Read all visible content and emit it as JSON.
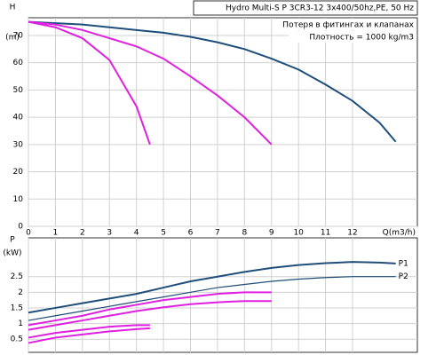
{
  "chart_data": [
    {
      "type": "line",
      "title": "Hydro Multi-S P 3CR3-12 3x400/50hz,PE, 50 Hz",
      "annotations": [
        "Потеря в фитингах и клапанах",
        "Плотность = 1000 kg/m3"
      ],
      "ylabel": [
        "H",
        "(m)"
      ],
      "xlabel": "Q(m3/h)",
      "xlim": [
        0,
        14.4
      ],
      "xticks": [
        0,
        1,
        2,
        3,
        4,
        5,
        6,
        7,
        8,
        9,
        10,
        11,
        12
      ],
      "ylim": [
        0,
        76.5
      ],
      "yticks": [
        0,
        10,
        20,
        30,
        40,
        50,
        60,
        70
      ],
      "grid": true,
      "series": [
        {
          "color": "#1f4e79",
          "x": [
            0,
            1,
            2,
            3,
            4,
            5,
            6,
            7,
            8,
            9,
            10,
            11,
            12,
            13,
            13.6
          ],
          "values": [
            75,
            74.5,
            74,
            73,
            72,
            71,
            69.5,
            67.5,
            65,
            61.5,
            57.5,
            52,
            46,
            38,
            31
          ]
        },
        {
          "color": "#e020e0",
          "x": [
            0,
            1,
            2,
            3,
            4,
            5,
            6,
            7,
            8,
            9
          ],
          "values": [
            75,
            74,
            72,
            69,
            66,
            61.5,
            55,
            48,
            40,
            30
          ]
        },
        {
          "color": "#e020e0",
          "x": [
            0,
            1,
            2,
            3,
            4,
            4.5
          ],
          "values": [
            75,
            73,
            69,
            61,
            44,
            30
          ]
        }
      ]
    },
    {
      "type": "line",
      "ylabel": [
        "P",
        "(kW)"
      ],
      "xlim": [
        0,
        14.4
      ],
      "ylim": [
        0.08,
        3.74
      ],
      "yticks": [
        0.5,
        1,
        1.5,
        2,
        2.5
      ],
      "grid": true,
      "series": [
        {
          "name": "P1",
          "color": "#1f4e79",
          "x": [
            0,
            1,
            2,
            3,
            4,
            5,
            6,
            7,
            8,
            9,
            10,
            11,
            12,
            13,
            13.6
          ],
          "values": [
            1.35,
            1.5,
            1.65,
            1.8,
            1.95,
            2.15,
            2.35,
            2.5,
            2.65,
            2.78,
            2.87,
            2.93,
            2.97,
            2.95,
            2.92
          ]
        },
        {
          "name": "P2",
          "color": "#1f4e79",
          "x": [
            0,
            1,
            2,
            3,
            4,
            5,
            6,
            7,
            8,
            9,
            10,
            11,
            12,
            13,
            13.6
          ],
          "values": [
            1.1,
            1.25,
            1.4,
            1.55,
            1.7,
            1.85,
            2.0,
            2.15,
            2.25,
            2.35,
            2.42,
            2.47,
            2.5,
            2.5,
            2.5
          ]
        },
        {
          "color": "#e020e0",
          "x": [
            0,
            1,
            2,
            3,
            4,
            5,
            6,
            7,
            8,
            9
          ],
          "values": [
            0.95,
            1.1,
            1.25,
            1.45,
            1.6,
            1.75,
            1.85,
            1.95,
            2.0,
            2.0
          ]
        },
        {
          "color": "#e020e0",
          "x": [
            0,
            1,
            2,
            3,
            4,
            5,
            6,
            7,
            8,
            9
          ],
          "values": [
            0.8,
            0.95,
            1.1,
            1.25,
            1.4,
            1.52,
            1.62,
            1.68,
            1.72,
            1.72
          ]
        },
        {
          "color": "#e020e0",
          "x": [
            0,
            1,
            2,
            3,
            4,
            4.5
          ],
          "values": [
            0.55,
            0.7,
            0.8,
            0.9,
            0.95,
            0.95
          ]
        },
        {
          "color": "#e020e0",
          "x": [
            0,
            1,
            2,
            3,
            4,
            4.5
          ],
          "values": [
            0.38,
            0.55,
            0.65,
            0.75,
            0.82,
            0.85
          ]
        }
      ]
    }
  ]
}
